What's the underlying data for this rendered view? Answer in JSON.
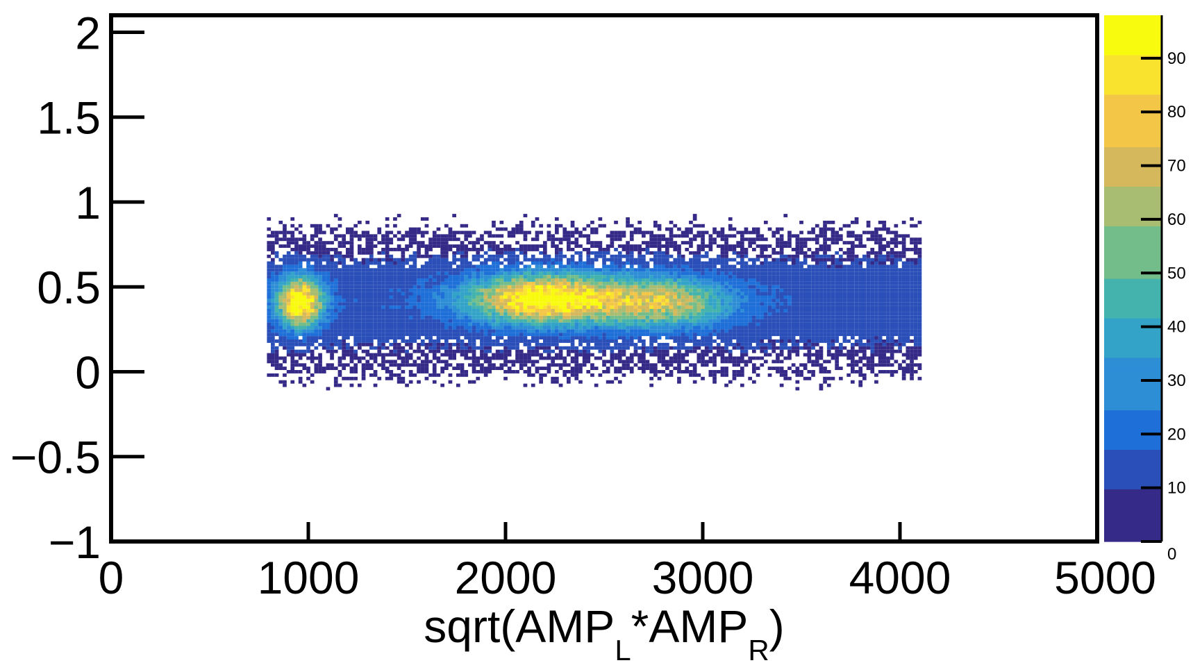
{
  "chart_data": {
    "type": "heatmap",
    "title": "",
    "xlabel": {
      "main": "sqrt(AMP",
      "sub_left": "L",
      "mid": "*AMP",
      "sub_right": "R",
      "end": ")"
    },
    "ylabel": "",
    "xlim": [
      0,
      5000
    ],
    "ylim": [
      -1,
      2.1
    ],
    "x_ticks": [
      0,
      1000,
      2000,
      3000,
      4000,
      5000
    ],
    "x_tick_labels": [
      "0",
      "1000",
      "2000",
      "3000",
      "4000",
      "5000"
    ],
    "y_ticks": [
      -1,
      -0.5,
      0,
      0.5,
      1,
      1.5,
      2
    ],
    "y_tick_labels": [
      "−1",
      "−0.5",
      "0",
      "0.5",
      "1",
      "1.5",
      "2"
    ],
    "zlim": [
      0,
      98
    ],
    "z_ticks": [
      0,
      10,
      20,
      30,
      40,
      50,
      60,
      70,
      80,
      90
    ],
    "z_tick_labels": [
      "0",
      "10",
      "20",
      "30",
      "40",
      "50",
      "60",
      "70",
      "80",
      "90"
    ],
    "grid": false,
    "legend": "colorbar-right",
    "colormap": [
      "#352a87",
      "#2a4fb8",
      "#1f6fd8",
      "#2d8ed6",
      "#33a4c8",
      "#45b3ad",
      "#73bd8b",
      "#a8bd72",
      "#d6b85c",
      "#f4c648",
      "#f9e32f",
      "#f9fb0e"
    ],
    "density": {
      "x_range": [
        790,
        4100
      ],
      "y_center": 0.4,
      "hotspots": [
        {
          "x": 950,
          "y": 0.4,
          "value": 95
        },
        {
          "x": 2200,
          "y": 0.42,
          "value": 90
        },
        {
          "x": 2800,
          "y": 0.4,
          "value": 55
        }
      ],
      "background_value": 12
    }
  }
}
